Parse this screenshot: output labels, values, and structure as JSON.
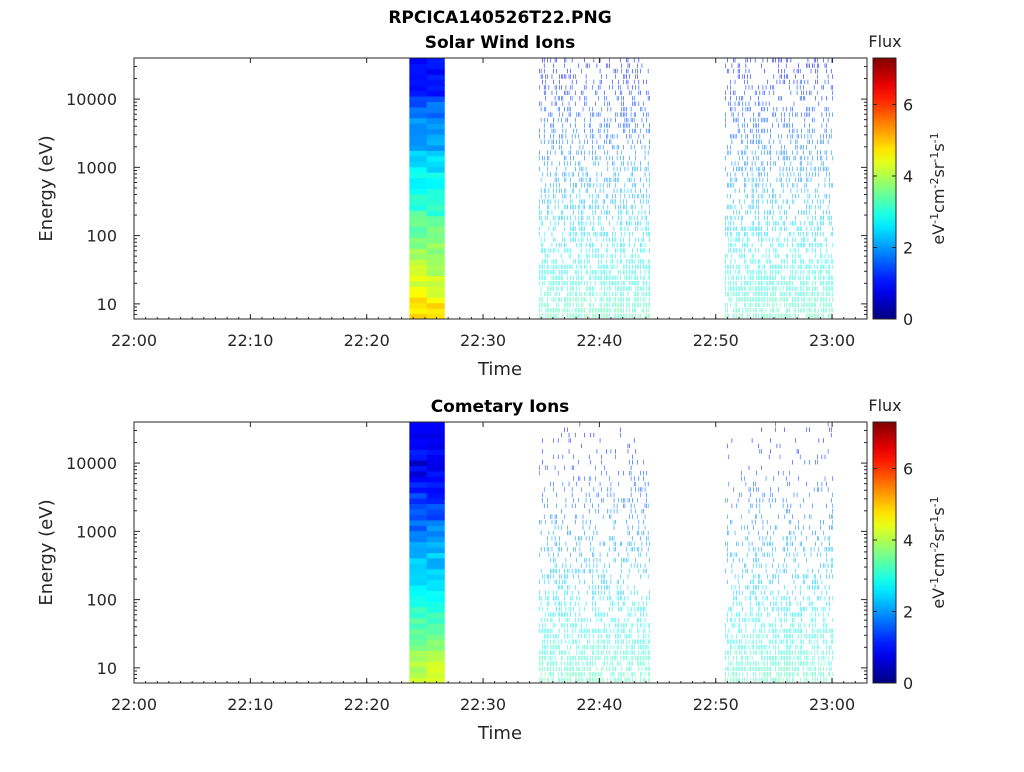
{
  "chart_data": [
    {
      "type": "heatmap",
      "title": "RPCICA140526T22.PNG",
      "subtitle": "Solar Wind Ions",
      "xlabel": "Time",
      "ylabel": "Energy (eV)",
      "x_ticks": [
        "22:00",
        "22:10",
        "22:20",
        "22:30",
        "22:40",
        "22:50",
        "23:00"
      ],
      "y_ticks": [
        "10",
        "100",
        "1000",
        "10000"
      ],
      "y_scale": "log",
      "ylim": [
        6,
        40000
      ],
      "xlim": [
        "22:00",
        "23:03"
      ],
      "colorbar": {
        "label": "Flux",
        "unit": "eV-1cm-2sr-1s-1",
        "ticks": [
          "0",
          "2",
          "4",
          "6"
        ],
        "range": [
          0,
          7.3
        ]
      },
      "data_intervals": [
        {
          "start": "22:23:40",
          "end": "22:26:40",
          "kind": "continuous"
        },
        {
          "start": "22:34:50",
          "end": "22:44:20",
          "kind": "sparse"
        },
        {
          "start": "22:50:50",
          "end": "23:00:10",
          "kind": "sparse"
        }
      ]
    },
    {
      "type": "heatmap",
      "title": "Cometary Ions",
      "xlabel": "Time",
      "ylabel": "Energy (eV)",
      "x_ticks": [
        "22:00",
        "22:10",
        "22:20",
        "22:30",
        "22:40",
        "22:50",
        "23:00"
      ],
      "y_ticks": [
        "10",
        "100",
        "1000",
        "10000"
      ],
      "y_scale": "log",
      "ylim": [
        6,
        40000
      ],
      "xlim": [
        "22:00",
        "23:03"
      ],
      "colorbar": {
        "label": "Flux",
        "unit": "eV-1cm-2sr-1s-1",
        "ticks": [
          "0",
          "2",
          "4",
          "6"
        ],
        "range": [
          0,
          7.3
        ]
      },
      "data_intervals": [
        {
          "start": "22:23:40",
          "end": "22:26:40",
          "kind": "continuous"
        },
        {
          "start": "22:34:50",
          "end": "22:44:20",
          "kind": "sparse"
        },
        {
          "start": "22:50:50",
          "end": "23:00:10",
          "kind": "sparse"
        }
      ]
    }
  ]
}
